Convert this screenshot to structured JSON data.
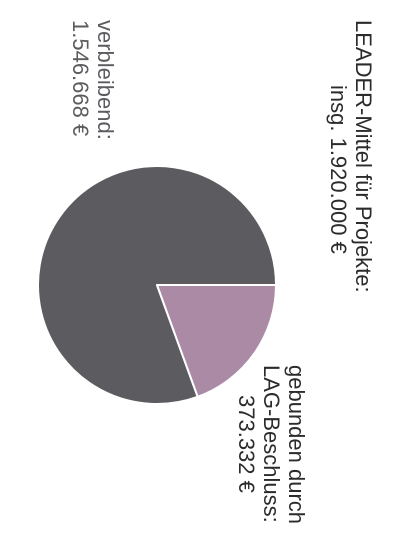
{
  "chart_data": {
    "type": "pie",
    "title": "LEADER-Mittel für Projekte:",
    "subtitle": "insg. 1.920.000 €",
    "slices": [
      {
        "name": "verbleibend:",
        "value_label": "1.546.668 €",
        "value": 1546668,
        "color": "#5c5c60"
      },
      {
        "name_line1": "gebunden durch",
        "name_line2": "LAG-Beschluss:",
        "value_label": "373.332 €",
        "value": 373332,
        "color": "#ab8aa6"
      }
    ]
  }
}
